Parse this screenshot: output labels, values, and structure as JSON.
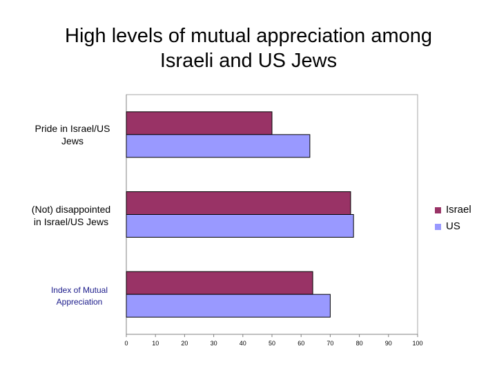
{
  "title_line1": "High levels of mutual appreciation among",
  "title_line2": "Israeli and US Jews",
  "chart_data": {
    "type": "bar",
    "orientation": "horizontal",
    "categories": [
      "Pride in Israel/US Jews",
      "(Not) disappointed in Israel/US Jews",
      "Index of Mutual Appreciation"
    ],
    "series": [
      {
        "name": "Israel",
        "color": "#993366",
        "values": [
          50,
          77,
          64
        ]
      },
      {
        "name": "US",
        "color": "#9999FF",
        "values": [
          63,
          78,
          70
        ]
      }
    ],
    "xlim": [
      0,
      100
    ],
    "xticks": [
      "0",
      "10",
      "20",
      "30",
      "40",
      "50",
      "60",
      "70",
      "80",
      "90",
      "100"
    ],
    "grid": false,
    "legend_position": "right"
  },
  "labels": {
    "cat0_line1": "Pride in Israel/US",
    "cat0_line2": "Jews",
    "cat1_line1": "(Not) disappointed",
    "cat1_line2": "in Israel/US Jews",
    "cat2_line1": "Index of Mutual",
    "cat2_line2": "Appreciation"
  },
  "legend": {
    "israel": "Israel",
    "us": "US"
  }
}
